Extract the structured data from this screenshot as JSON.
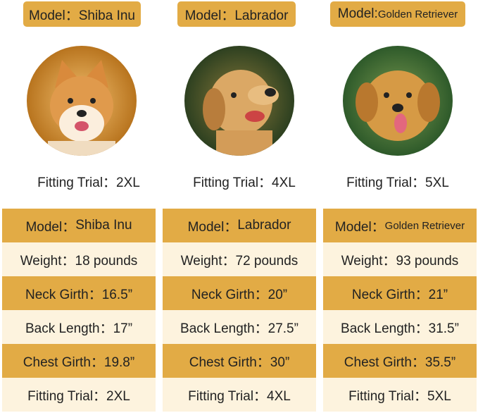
{
  "colors": {
    "gold": "#E2AB45",
    "cream": "#FDF3DE"
  },
  "dogs": [
    {
      "model": "Model：Shiba Inu",
      "fitting": "Fitting Trial：2XL",
      "table_model_prefix": "Model：",
      "table_model_name": "Shiba Inu",
      "weight": "Weight：18 pounds",
      "neck": "Neck Girth：16.5”",
      "back": "Back Length：17”",
      "chest": "Chest Girth：19.8”",
      "fit": "Fitting Trial：2XL"
    },
    {
      "model": "Model：Labrador",
      "fitting": "Fitting Trial：4XL",
      "table_model_prefix": "Model：",
      "table_model_name": "Labrador",
      "weight": "Weight：72 pounds",
      "neck": "Neck Girth：20”",
      "back": "Back Length：27.5”",
      "chest": "Chest Girth：30”",
      "fit": "Fitting Trial：4XL"
    },
    {
      "model_prefix": "Model:",
      "model_name": "Golden Retriever",
      "fitting": "Fitting Trial：5XL",
      "table_model_prefix": "Model：",
      "table_model_name": "Golden Retriever",
      "weight": "Weight：93 pounds",
      "neck": "Neck Girth：21”",
      "back": "Back Length：31.5”",
      "chest": "Chest Girth：35.5”",
      "fit": "Fitting Trial：5XL"
    }
  ]
}
